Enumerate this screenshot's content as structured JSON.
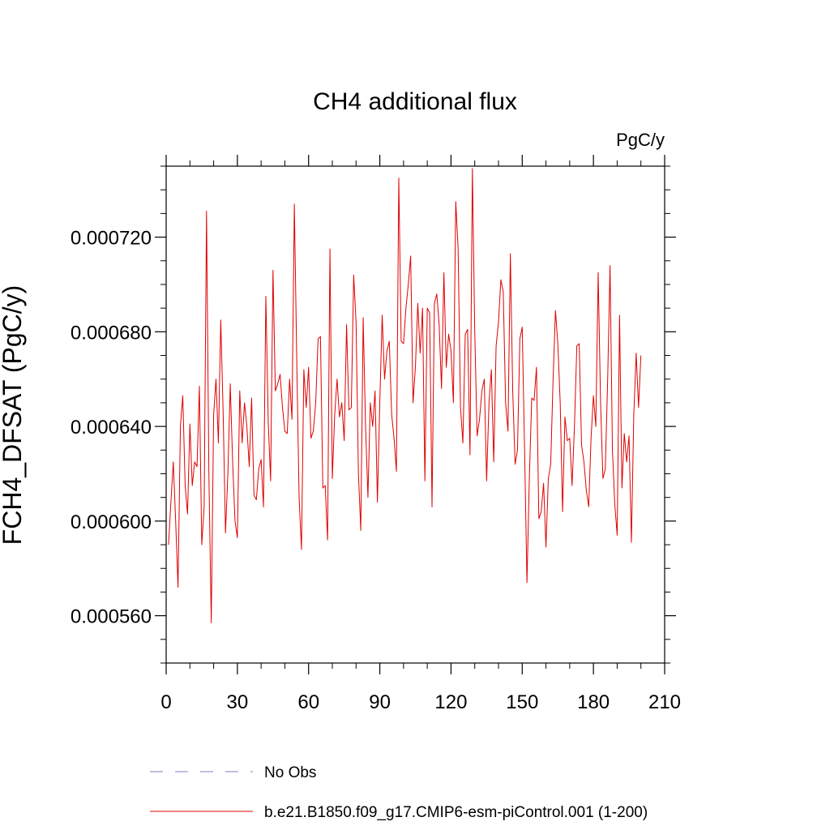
{
  "chart_data": {
    "type": "line",
    "title": "CH4 additional flux",
    "units": "PgC/y",
    "ylabel": "FCH4_DFSAT  (PgC/y)",
    "xlabel": "",
    "xlim": [
      0,
      210
    ],
    "ylim": [
      0.00054,
      0.00075
    ],
    "x_ticks": [
      0,
      30,
      60,
      90,
      120,
      150,
      180,
      210
    ],
    "x_tick_labels": [
      "0",
      "30",
      "60",
      "90",
      "120",
      "150",
      "180",
      "210"
    ],
    "y_ticks": [
      0.00056,
      0.0006,
      0.00064,
      0.00068,
      0.00072
    ],
    "y_tick_labels": [
      "0.000560",
      "0.000600",
      "0.000640",
      "0.000680",
      "0.000720"
    ],
    "grid": false,
    "legend_position": "bottom",
    "series": [
      {
        "name": "No Obs",
        "color": "#7f7fbf",
        "style": "dashed",
        "values": []
      },
      {
        "name": "b.e21.B1850.f09_g17.CMIP6-esm-piControl.001 (1-200)",
        "color": "#e00000",
        "style": "solid",
        "x_start": 1,
        "values": [
          0.00059,
          0.000608,
          0.000625,
          0.0006,
          0.000572,
          0.00064,
          0.000653,
          0.000615,
          0.000603,
          0.000641,
          0.000615,
          0.000625,
          0.000623,
          0.000657,
          0.00059,
          0.000606,
          0.000731,
          0.00062,
          0.000557,
          0.000645,
          0.00066,
          0.000633,
          0.000685,
          0.000646,
          0.000595,
          0.00062,
          0.000658,
          0.000625,
          0.0006,
          0.000593,
          0.000655,
          0.000633,
          0.00065,
          0.00064,
          0.000623,
          0.000652,
          0.000611,
          0.000609,
          0.000622,
          0.000626,
          0.000606,
          0.000695,
          0.000642,
          0.000617,
          0.000706,
          0.000655,
          0.000658,
          0.000662,
          0.000648,
          0.000638,
          0.000637,
          0.00066,
          0.000643,
          0.000734,
          0.000669,
          0.00061,
          0.000588,
          0.000664,
          0.000648,
          0.000665,
          0.000635,
          0.000638,
          0.00065,
          0.000677,
          0.000678,
          0.000614,
          0.000615,
          0.000592,
          0.000715,
          0.000618,
          0.000645,
          0.00066,
          0.000644,
          0.00065,
          0.000634,
          0.000683,
          0.000647,
          0.000648,
          0.000704,
          0.000684,
          0.00062,
          0.000596,
          0.000686,
          0.00064,
          0.00061,
          0.00065,
          0.00064,
          0.000655,
          0.000608,
          0.00065,
          0.000687,
          0.00066,
          0.000672,
          0.000676,
          0.000645,
          0.000635,
          0.000621,
          0.000745,
          0.000676,
          0.000675,
          0.00069,
          0.0007,
          0.000712,
          0.00065,
          0.000665,
          0.000692,
          0.000671,
          0.00069,
          0.000617,
          0.00069,
          0.000688,
          0.000606,
          0.000692,
          0.000696,
          0.000683,
          0.000656,
          0.000705,
          0.000665,
          0.000679,
          0.000672,
          0.00065,
          0.000735,
          0.000715,
          0.000648,
          0.000633,
          0.000679,
          0.000681,
          0.000628,
          0.000749,
          0.00068,
          0.000636,
          0.000643,
          0.000655,
          0.00066,
          0.000617,
          0.00065,
          0.000664,
          0.000625,
          0.000674,
          0.000684,
          0.000702,
          0.000697,
          0.00065,
          0.000638,
          0.000713,
          0.000655,
          0.000624,
          0.00063,
          0.000677,
          0.000682,
          0.00063,
          0.000574,
          0.000618,
          0.000652,
          0.000651,
          0.000665,
          0.000601,
          0.000604,
          0.000616,
          0.000589,
          0.000618,
          0.000624,
          0.00066,
          0.000689,
          0.000675,
          0.00065,
          0.000604,
          0.000644,
          0.000634,
          0.000635,
          0.000615,
          0.00064,
          0.000674,
          0.000675,
          0.000632,
          0.000625,
          0.000613,
          0.000606,
          0.000635,
          0.000653,
          0.00064,
          0.000705,
          0.00065,
          0.000618,
          0.000622,
          0.00066,
          0.000708,
          0.00063,
          0.000607,
          0.000594,
          0.000687,
          0.000614,
          0.000637,
          0.000625,
          0.000636,
          0.000591,
          0.000645,
          0.000671,
          0.000648,
          0.00067
        ]
      }
    ]
  }
}
